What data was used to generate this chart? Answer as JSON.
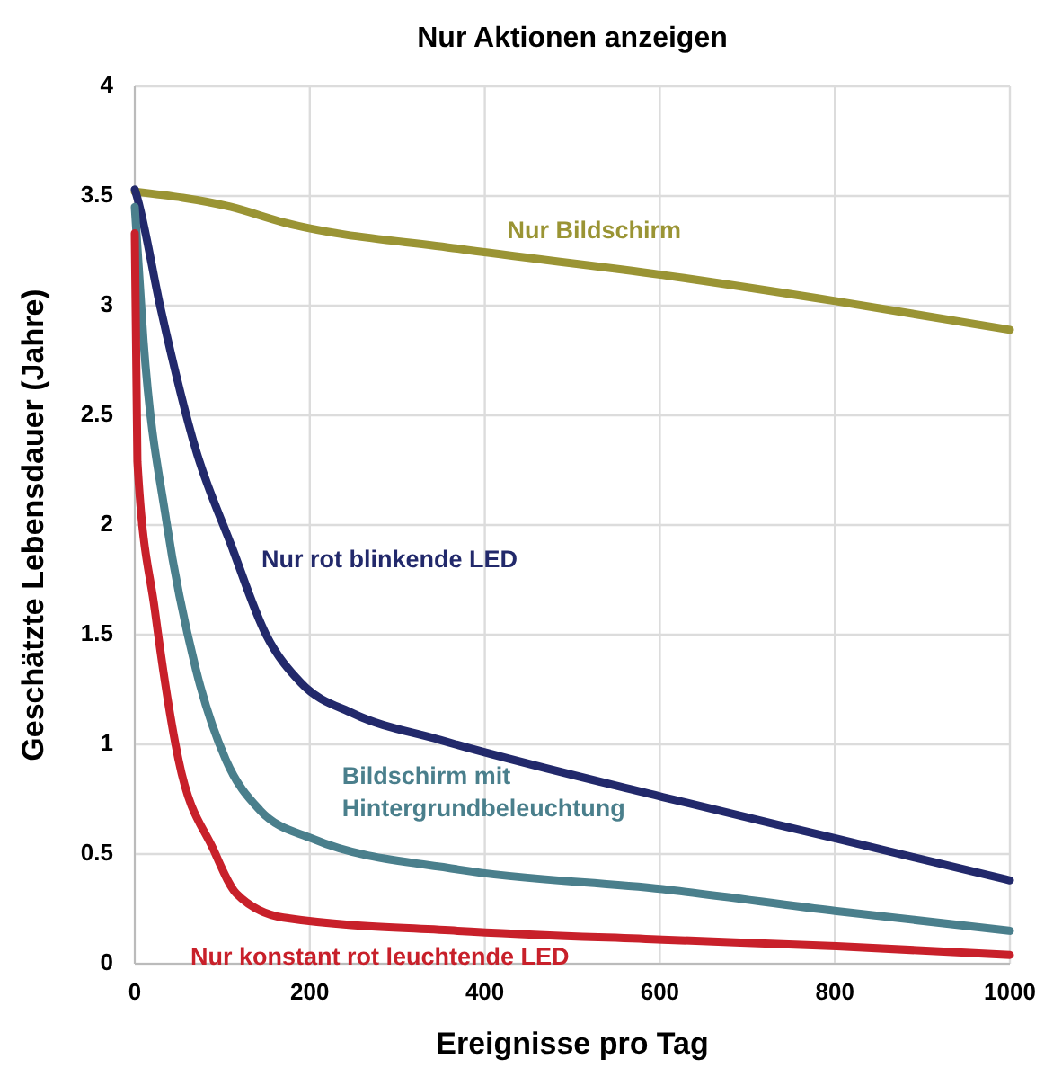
{
  "chart_data": {
    "type": "line",
    "title": "Nur Aktionen anzeigen",
    "xlabel": "Ereignisse pro Tag",
    "ylabel": "Geschätzte Lebensdauer (Jahre)",
    "xlim": [
      0,
      1000
    ],
    "xticks": [
      0,
      200,
      400,
      600,
      800,
      1000
    ],
    "ylim": [
      0,
      4
    ],
    "yticks": [
      0,
      0.5,
      1,
      1.5,
      2,
      2.5,
      3,
      3.5,
      4
    ],
    "grid": true,
    "marker": "none",
    "line_style": "solid",
    "series": [
      {
        "name": "Nur Bildschirm",
        "color": "#9a9434",
        "x": [
          0,
          110,
          170,
          369,
          603,
          802,
          1000
        ],
        "values": [
          3.52,
          3.45,
          3.38,
          3.26,
          3.14,
          3.02,
          2.89
        ]
      },
      {
        "name": "Nur rot blinkende LED",
        "color": "#22296b",
        "x": [
          0,
          3,
          30,
          70,
          110,
          150,
          190,
          250,
          349,
          603,
          802,
          1000
        ],
        "values": [
          3.53,
          3.49,
          2.98,
          2.34,
          1.91,
          1.5,
          1.28,
          1.14,
          1.02,
          0.76,
          0.57,
          0.38
        ]
      },
      {
        "name": "Bildschirm mit\nHintergrundbeleuchtung",
        "color": "#4a7f8c",
        "x": [
          0,
          10,
          36,
          70,
          104,
          143,
          203,
          369,
          603,
          802,
          1000
        ],
        "values": [
          3.45,
          2.84,
          2.02,
          1.34,
          0.93,
          0.7,
          0.57,
          0.43,
          0.34,
          0.24,
          0.15
        ]
      },
      {
        "name": "Nur konstant rot leuchtende LED",
        "color": "#c8202a",
        "x": [
          0,
          3,
          23,
          50,
          90,
          116,
          170,
          369,
          603,
          802,
          1000
        ],
        "values": [
          3.33,
          2.29,
          1.61,
          0.93,
          0.52,
          0.32,
          0.21,
          0.15,
          0.11,
          0.08,
          0.04
        ]
      }
    ]
  }
}
